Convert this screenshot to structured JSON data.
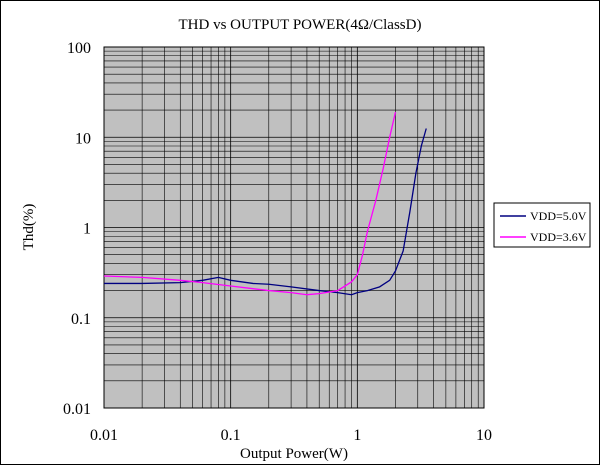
{
  "chart_data": {
    "type": "line",
    "title": "THD vs OUTPUT POWER(4Ω/ClassD)",
    "xlabel": "Output Power(W)",
    "ylabel": "Thd(%)",
    "x_scale": "log",
    "y_scale": "log",
    "xlim": [
      0.01,
      10
    ],
    "ylim": [
      0.01,
      100
    ],
    "x_ticks": [
      {
        "value": 0.01,
        "label": "0.01"
      },
      {
        "value": 0.1,
        "label": "0.1"
      },
      {
        "value": 1,
        "label": "1"
      },
      {
        "value": 10,
        "label": "10"
      }
    ],
    "y_ticks": [
      {
        "value": 0.01,
        "label": "0.01"
      },
      {
        "value": 0.1,
        "label": "0.1"
      },
      {
        "value": 1,
        "label": "1"
      },
      {
        "value": 10,
        "label": "10"
      },
      {
        "value": 100,
        "label": "100"
      }
    ],
    "grid": true,
    "legend_position": "right",
    "series": [
      {
        "name": "VDD=5.0V",
        "color": "#000080",
        "points": [
          [
            0.01,
            0.24
          ],
          [
            0.02,
            0.24
          ],
          [
            0.04,
            0.245
          ],
          [
            0.06,
            0.26
          ],
          [
            0.08,
            0.28
          ],
          [
            0.1,
            0.26
          ],
          [
            0.15,
            0.24
          ],
          [
            0.2,
            0.235
          ],
          [
            0.3,
            0.22
          ],
          [
            0.5,
            0.2
          ],
          [
            0.7,
            0.19
          ],
          [
            0.9,
            0.18
          ],
          [
            1.0,
            0.19
          ],
          [
            1.2,
            0.2
          ],
          [
            1.5,
            0.22
          ],
          [
            1.8,
            0.26
          ],
          [
            2.0,
            0.33
          ],
          [
            2.3,
            0.55
          ],
          [
            2.6,
            1.5
          ],
          [
            2.9,
            4.0
          ],
          [
            3.2,
            8.0
          ],
          [
            3.5,
            12.5
          ]
        ]
      },
      {
        "name": "VDD=3.6V",
        "color": "#ff00ff",
        "points": [
          [
            0.01,
            0.29
          ],
          [
            0.02,
            0.28
          ],
          [
            0.04,
            0.26
          ],
          [
            0.06,
            0.245
          ],
          [
            0.1,
            0.225
          ],
          [
            0.15,
            0.21
          ],
          [
            0.2,
            0.2
          ],
          [
            0.3,
            0.19
          ],
          [
            0.4,
            0.18
          ],
          [
            0.5,
            0.185
          ],
          [
            0.7,
            0.2
          ],
          [
            0.9,
            0.25
          ],
          [
            1.0,
            0.3
          ],
          [
            1.1,
            0.5
          ],
          [
            1.2,
            0.9
          ],
          [
            1.4,
            2.0
          ],
          [
            1.6,
            4.5
          ],
          [
            1.8,
            10.0
          ],
          [
            2.0,
            19.0
          ]
        ]
      }
    ]
  }
}
